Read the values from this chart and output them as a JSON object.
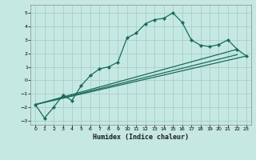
{
  "xlabel": "Humidex (Indice chaleur)",
  "bg_color": "#c5e8e2",
  "grid_color": "#a8cfc9",
  "line_color": "#1a6b5a",
  "xlim": [
    -0.5,
    23.5
  ],
  "ylim": [
    -3.3,
    5.6
  ],
  "xticks": [
    0,
    1,
    2,
    3,
    4,
    5,
    6,
    7,
    8,
    9,
    10,
    11,
    12,
    13,
    14,
    15,
    16,
    17,
    18,
    19,
    20,
    21,
    22,
    23
  ],
  "yticks": [
    -3,
    -2,
    -1,
    0,
    1,
    2,
    3,
    4,
    5
  ],
  "line1_x": [
    0,
    1,
    2,
    3,
    4,
    5,
    6,
    7,
    8,
    9,
    10,
    11,
    12,
    13,
    14,
    15,
    16,
    17,
    18,
    19,
    20,
    21,
    22,
    23
  ],
  "line1_y": [
    -1.8,
    -2.8,
    -2.0,
    -1.1,
    -1.5,
    -0.4,
    0.35,
    0.85,
    1.0,
    1.35,
    3.15,
    3.5,
    4.2,
    4.5,
    4.6,
    5.0,
    4.3,
    3.0,
    2.6,
    2.5,
    2.65,
    3.0,
    2.3,
    1.8
  ],
  "line2_x": [
    0,
    23
  ],
  "line2_y": [
    -1.8,
    1.8
  ],
  "line3_x": [
    0,
    22
  ],
  "line3_y": [
    -1.8,
    2.3
  ],
  "line4_x": [
    0,
    22
  ],
  "line4_y": [
    -1.8,
    2.3
  ]
}
